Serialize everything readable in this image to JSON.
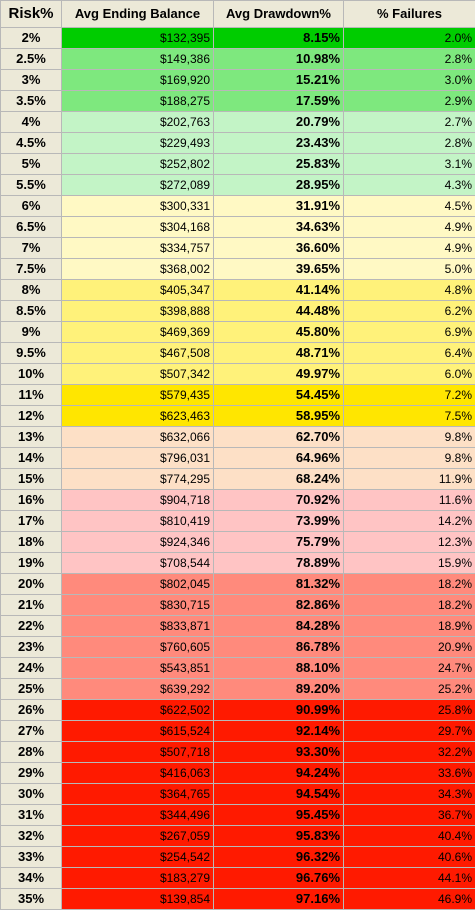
{
  "chart_data": {
    "type": "table",
    "columns": [
      "Risk%",
      "Avg Ending Balance",
      "Avg Drawdown%",
      "% Failures"
    ],
    "rows": [
      {
        "risk": "2%",
        "balance": "$132,395",
        "drawdown": "8.15%",
        "failures": "2.0%",
        "color": "#00cc00"
      },
      {
        "risk": "2.5%",
        "balance": "$149,386",
        "drawdown": "10.98%",
        "failures": "2.8%",
        "color": "#7ee87e"
      },
      {
        "risk": "3%",
        "balance": "$169,920",
        "drawdown": "15.21%",
        "failures": "3.0%",
        "color": "#7ee87e"
      },
      {
        "risk": "3.5%",
        "balance": "$188,275",
        "drawdown": "17.59%",
        "failures": "2.9%",
        "color": "#7ee87e"
      },
      {
        "risk": "4%",
        "balance": "$202,763",
        "drawdown": "20.79%",
        "failures": "2.7%",
        "color": "#c3f4c6"
      },
      {
        "risk": "4.5%",
        "balance": "$229,493",
        "drawdown": "23.43%",
        "failures": "2.8%",
        "color": "#c3f4c6"
      },
      {
        "risk": "5%",
        "balance": "$252,802",
        "drawdown": "25.83%",
        "failures": "3.1%",
        "color": "#c3f4c6"
      },
      {
        "risk": "5.5%",
        "balance": "$272,089",
        "drawdown": "28.95%",
        "failures": "4.3%",
        "color": "#c3f4c6"
      },
      {
        "risk": "6%",
        "balance": "$300,331",
        "drawdown": "31.91%",
        "failures": "4.5%",
        "color": "#fff9c4"
      },
      {
        "risk": "6.5%",
        "balance": "$304,168",
        "drawdown": "34.63%",
        "failures": "4.9%",
        "color": "#fff9c4"
      },
      {
        "risk": "7%",
        "balance": "$334,757",
        "drawdown": "36.60%",
        "failures": "4.9%",
        "color": "#fff9c4"
      },
      {
        "risk": "7.5%",
        "balance": "$368,002",
        "drawdown": "39.65%",
        "failures": "5.0%",
        "color": "#fff9c4"
      },
      {
        "risk": "8%",
        "balance": "$405,347",
        "drawdown": "41.14%",
        "failures": "4.8%",
        "color": "#fff27a"
      },
      {
        "risk": "8.5%",
        "balance": "$398,888",
        "drawdown": "44.48%",
        "failures": "6.2%",
        "color": "#fff27a"
      },
      {
        "risk": "9%",
        "balance": "$469,369",
        "drawdown": "45.80%",
        "failures": "6.9%",
        "color": "#fff27a"
      },
      {
        "risk": "9.5%",
        "balance": "$467,508",
        "drawdown": "48.71%",
        "failures": "6.4%",
        "color": "#fff27a"
      },
      {
        "risk": "10%",
        "balance": "$507,342",
        "drawdown": "49.97%",
        "failures": "6.0%",
        "color": "#fff27a"
      },
      {
        "risk": "11%",
        "balance": "$579,435",
        "drawdown": "54.45%",
        "failures": "7.2%",
        "color": "#ffe600"
      },
      {
        "risk": "12%",
        "balance": "$623,463",
        "drawdown": "58.95%",
        "failures": "7.5%",
        "color": "#ffe600"
      },
      {
        "risk": "13%",
        "balance": "$632,066",
        "drawdown": "62.70%",
        "failures": "9.8%",
        "color": "#fde0c6"
      },
      {
        "risk": "14%",
        "balance": "$796,031",
        "drawdown": "64.96%",
        "failures": "9.8%",
        "color": "#fde0c6"
      },
      {
        "risk": "15%",
        "balance": "$774,295",
        "drawdown": "68.24%",
        "failures": "11.9%",
        "color": "#fde0c6"
      },
      {
        "risk": "16%",
        "balance": "$904,718",
        "drawdown": "70.92%",
        "failures": "11.6%",
        "color": "#ffc4c4"
      },
      {
        "risk": "17%",
        "balance": "$810,419",
        "drawdown": "73.99%",
        "failures": "14.2%",
        "color": "#ffc4c4"
      },
      {
        "risk": "18%",
        "balance": "$924,346",
        "drawdown": "75.79%",
        "failures": "12.3%",
        "color": "#ffc4c4"
      },
      {
        "risk": "19%",
        "balance": "$708,544",
        "drawdown": "78.89%",
        "failures": "15.9%",
        "color": "#ffc4c4"
      },
      {
        "risk": "20%",
        "balance": "$802,045",
        "drawdown": "81.32%",
        "failures": "18.2%",
        "color": "#ff8a7c"
      },
      {
        "risk": "21%",
        "balance": "$830,715",
        "drawdown": "82.86%",
        "failures": "18.2%",
        "color": "#ff8a7c"
      },
      {
        "risk": "22%",
        "balance": "$833,871",
        "drawdown": "84.28%",
        "failures": "18.9%",
        "color": "#ff8a7c"
      },
      {
        "risk": "23%",
        "balance": "$760,605",
        "drawdown": "86.78%",
        "failures": "20.9%",
        "color": "#ff8a7c"
      },
      {
        "risk": "24%",
        "balance": "$543,851",
        "drawdown": "88.10%",
        "failures": "24.7%",
        "color": "#ff8a7c"
      },
      {
        "risk": "25%",
        "balance": "$639,292",
        "drawdown": "89.20%",
        "failures": "25.2%",
        "color": "#ff8a7c"
      },
      {
        "risk": "26%",
        "balance": "$622,502",
        "drawdown": "90.99%",
        "failures": "25.8%",
        "color": "#ff1a00"
      },
      {
        "risk": "27%",
        "balance": "$615,524",
        "drawdown": "92.14%",
        "failures": "29.7%",
        "color": "#ff1a00"
      },
      {
        "risk": "28%",
        "balance": "$507,718",
        "drawdown": "93.30%",
        "failures": "32.2%",
        "color": "#ff1a00"
      },
      {
        "risk": "29%",
        "balance": "$416,063",
        "drawdown": "94.24%",
        "failures": "33.6%",
        "color": "#ff1a00"
      },
      {
        "risk": "30%",
        "balance": "$364,765",
        "drawdown": "94.54%",
        "failures": "34.3%",
        "color": "#ff1a00"
      },
      {
        "risk": "31%",
        "balance": "$344,496",
        "drawdown": "95.45%",
        "failures": "36.7%",
        "color": "#ff1a00"
      },
      {
        "risk": "32%",
        "balance": "$267,059",
        "drawdown": "95.83%",
        "failures": "40.4%",
        "color": "#ff1a00"
      },
      {
        "risk": "33%",
        "balance": "$254,542",
        "drawdown": "96.32%",
        "failures": "40.6%",
        "color": "#ff1a00"
      },
      {
        "risk": "34%",
        "balance": "$183,279",
        "drawdown": "96.76%",
        "failures": "44.1%",
        "color": "#ff1a00"
      },
      {
        "risk": "35%",
        "balance": "$139,854",
        "drawdown": "97.16%",
        "failures": "46.9%",
        "color": "#ff1a00"
      }
    ]
  }
}
